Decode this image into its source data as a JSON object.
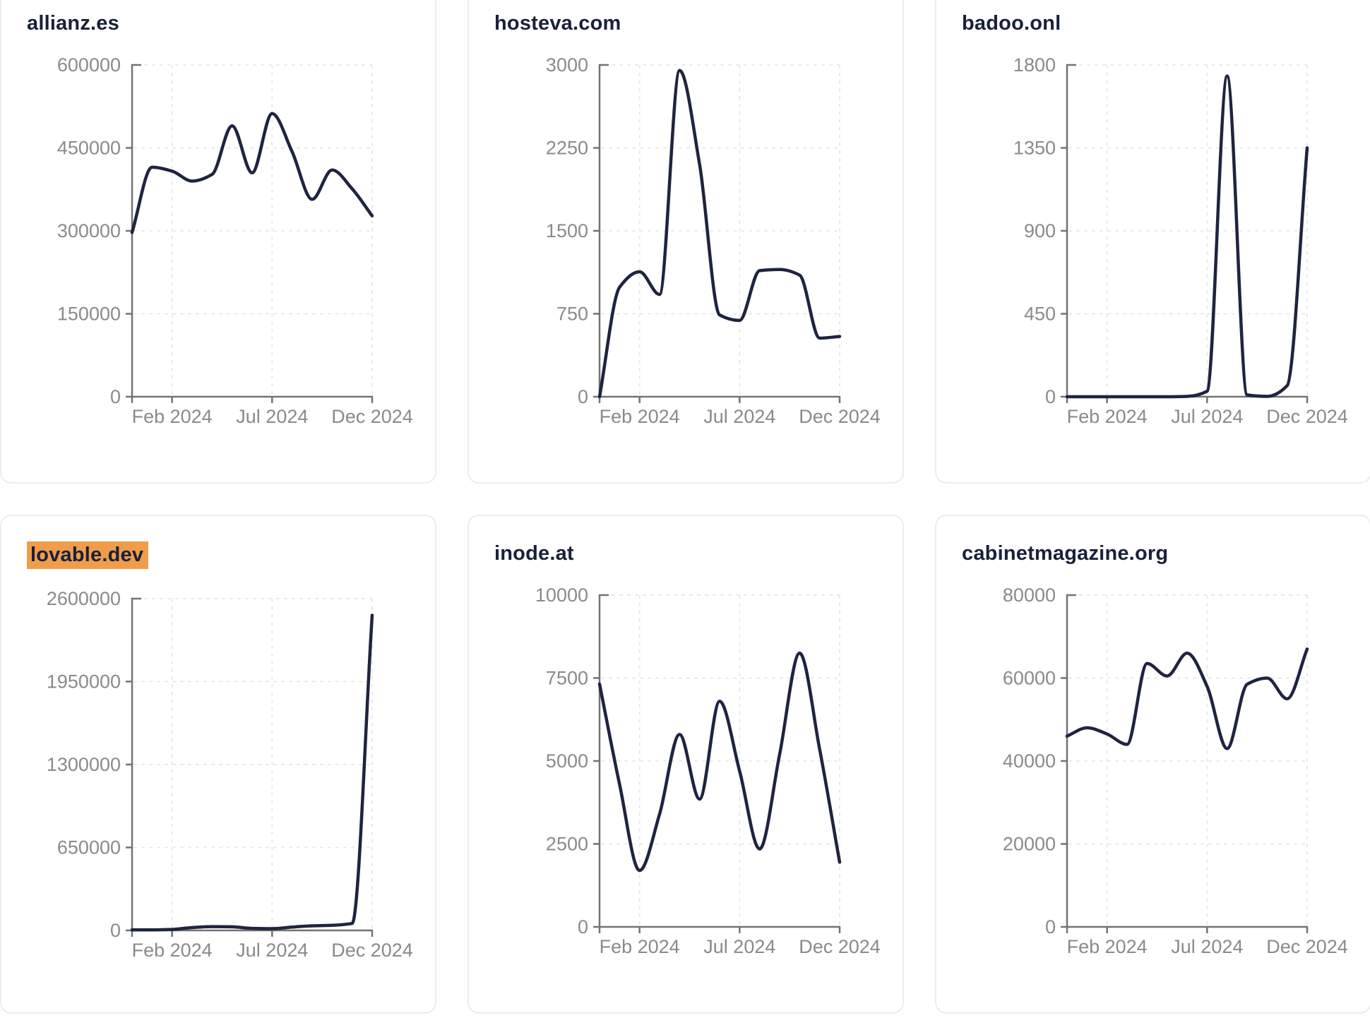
{
  "ui": {
    "line_color": "#1e2440",
    "title_color": "#19203a",
    "tick_label_color": "#8a8a8a",
    "axis_color": "#737373",
    "grid_color": "#e7e7e7",
    "card_border_color": "#e9ecf1",
    "card_background": "#ffffff",
    "page_background": "#ffffff",
    "highlight_color": "#f09d4b"
  },
  "chart_data": [
    {
      "type": "line",
      "title": "allianz.es",
      "title_highlighted": false,
      "x": [
        "Dec 2023",
        "Jan 2024",
        "Feb 2024",
        "Mar 2024",
        "Apr 2024",
        "May 2024",
        "Jun 2024",
        "Jul 2024",
        "Aug 2024",
        "Sep 2024",
        "Oct 2024",
        "Nov 2024",
        "Dec 2024"
      ],
      "values": [
        297000,
        415000,
        408000,
        390000,
        402000,
        490000,
        405000,
        512000,
        443000,
        357000,
        410000,
        376000,
        327000
      ],
      "y_ticks": [
        0,
        150000,
        300000,
        450000,
        600000
      ],
      "ylim": [
        0,
        600000
      ],
      "x_tick_labels": [
        "Feb 2024",
        "Jul 2024",
        "Dec 2024"
      ],
      "x_tick_positions": [
        2,
        7,
        12
      ],
      "grid": true,
      "legend": "none"
    },
    {
      "type": "line",
      "title": "hosteva.com",
      "title_highlighted": false,
      "x": [
        "Dec 2023",
        "Jan 2024",
        "Feb 2024",
        "Mar 2024",
        "Apr 2024",
        "May 2024",
        "Jun 2024",
        "Jul 2024",
        "Aug 2024",
        "Sep 2024",
        "Oct 2024",
        "Nov 2024",
        "Dec 2024"
      ],
      "values": [
        0,
        990,
        1130,
        925,
        2950,
        2100,
        740,
        690,
        1140,
        1150,
        1100,
        530,
        545
      ],
      "y_ticks": [
        0,
        750,
        1500,
        2250,
        3000
      ],
      "ylim": [
        0,
        3000
      ],
      "x_tick_labels": [
        "Feb 2024",
        "Jul 2024",
        "Dec 2024"
      ],
      "x_tick_positions": [
        2,
        7,
        12
      ],
      "grid": true,
      "legend": "none"
    },
    {
      "type": "line",
      "title": "badoo.onl",
      "title_highlighted": false,
      "x": [
        "Dec 2023",
        "Jan 2024",
        "Feb 2024",
        "Mar 2024",
        "Apr 2024",
        "May 2024",
        "Jun 2024",
        "Jul 2024",
        "Aug 2024",
        "Sep 2024",
        "Oct 2024",
        "Nov 2024",
        "Dec 2024"
      ],
      "values": [
        0,
        0,
        0,
        0,
        0,
        0,
        2,
        30,
        1740,
        10,
        2,
        60,
        1350
      ],
      "y_ticks": [
        0,
        450,
        900,
        1350,
        1800
      ],
      "ylim": [
        0,
        1800
      ],
      "x_tick_labels": [
        "Feb 2024",
        "Jul 2024",
        "Dec 2024"
      ],
      "x_tick_positions": [
        2,
        7,
        12
      ],
      "grid": true,
      "legend": "none"
    },
    {
      "type": "line",
      "title": "lovable.dev",
      "title_highlighted": true,
      "x": [
        "Dec 2023",
        "Jan 2024",
        "Feb 2024",
        "Mar 2024",
        "Apr 2024",
        "May 2024",
        "Jun 2024",
        "Jul 2024",
        "Aug 2024",
        "Sep 2024",
        "Oct 2024",
        "Nov 2024",
        "Dec 2024"
      ],
      "values": [
        4000,
        4000,
        8000,
        22000,
        30000,
        28000,
        16000,
        14000,
        26000,
        36000,
        40000,
        55000,
        2470000
      ],
      "y_ticks": [
        0,
        650000,
        1300000,
        1950000,
        2600000
      ],
      "ylim": [
        0,
        2600000
      ],
      "x_tick_labels": [
        "Feb 2024",
        "Jul 2024",
        "Dec 2024"
      ],
      "x_tick_positions": [
        2,
        7,
        12
      ],
      "grid": true,
      "legend": "none"
    },
    {
      "type": "line",
      "title": "inode.at",
      "title_highlighted": false,
      "x": [
        "Dec 2023",
        "Jan 2024",
        "Feb 2024",
        "Mar 2024",
        "Apr 2024",
        "May 2024",
        "Jun 2024",
        "Jul 2024",
        "Aug 2024",
        "Sep 2024",
        "Oct 2024",
        "Nov 2024",
        "Dec 2024"
      ],
      "values": [
        7320,
        4300,
        1700,
        3400,
        5800,
        3850,
        6800,
        4700,
        2350,
        5200,
        8250,
        5350,
        1950
      ],
      "y_ticks": [
        0,
        2500,
        5000,
        7500,
        10000
      ],
      "ylim": [
        0,
        10000
      ],
      "x_tick_labels": [
        "Feb 2024",
        "Jul 2024",
        "Dec 2024"
      ],
      "x_tick_positions": [
        2,
        7,
        12
      ],
      "grid": true,
      "legend": "none"
    },
    {
      "type": "line",
      "title": "cabinetmagazine.org",
      "title_highlighted": false,
      "x": [
        "Dec 2023",
        "Jan 2024",
        "Feb 2024",
        "Mar 2024",
        "Apr 2024",
        "May 2024",
        "Jun 2024",
        "Jul 2024",
        "Aug 2024",
        "Sep 2024",
        "Oct 2024",
        "Nov 2024",
        "Dec 2024"
      ],
      "values": [
        46000,
        48000,
        46500,
        44000,
        63500,
        60500,
        66000,
        58000,
        43000,
        58500,
        60000,
        55000,
        67000
      ],
      "y_ticks": [
        0,
        20000,
        40000,
        60000,
        80000
      ],
      "ylim": [
        0,
        80000
      ],
      "x_tick_labels": [
        "Feb 2024",
        "Jul 2024",
        "Dec 2024"
      ],
      "x_tick_positions": [
        2,
        7,
        12
      ],
      "grid": true,
      "legend": "none"
    }
  ]
}
